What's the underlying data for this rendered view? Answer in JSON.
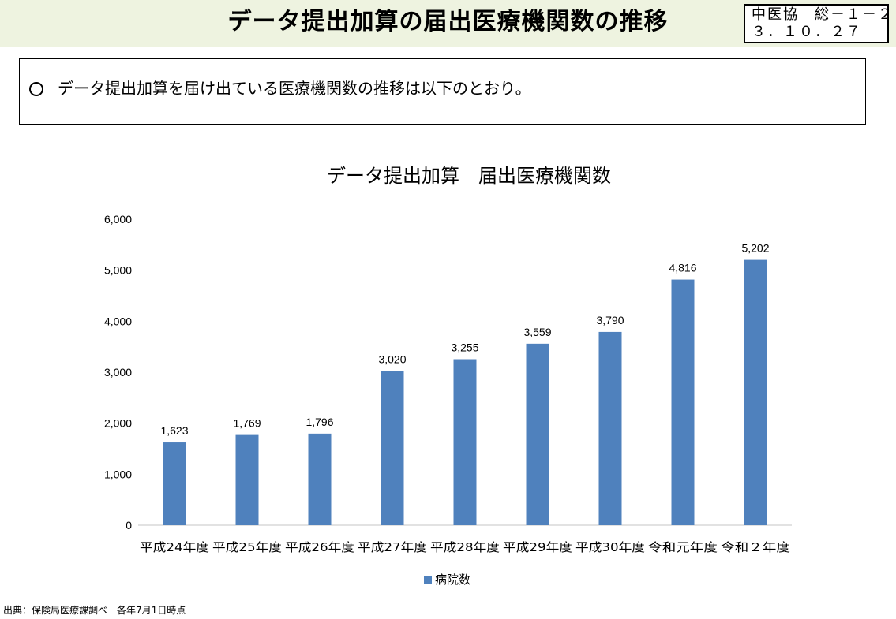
{
  "header": {
    "title": "データ提出加算の届出医療機関数の推移",
    "doc_id_line1": "中医協　総－１－２",
    "doc_id_line2": "３．１０．２７"
  },
  "summary": {
    "bullet": "○",
    "text": "データ提出加算を届け出ている医療機関数の推移は以下のとおり。"
  },
  "footer": {
    "source": "出典：保険局医療課調べ　各年7月1日時点"
  },
  "colors": {
    "bar": "#4f81bd",
    "axis": "#d9d9d9",
    "title_band": "#eef3e0"
  },
  "chart_data": {
    "type": "bar",
    "title": "データ提出加算　届出医療機関数",
    "categories": [
      "平成24年度",
      "平成25年度",
      "平成26年度",
      "平成27年度",
      "平成28年度",
      "平成29年度",
      "平成30年度",
      "令和元年度",
      "令和２年度"
    ],
    "series": [
      {
        "name": "病院数",
        "values": [
          1623,
          1769,
          1796,
          3020,
          3255,
          3559,
          3790,
          4816,
          5202
        ]
      }
    ],
    "data_labels": [
      "1,623",
      "1,769",
      "1,796",
      "3,020",
      "3,255",
      "3,559",
      "3,790",
      "4,816",
      "5,202"
    ],
    "y_ticks": [
      "0",
      "1,000",
      "2,000",
      "3,000",
      "4,000",
      "5,000",
      "6,000"
    ],
    "ylim": [
      0,
      6000
    ],
    "grid": false,
    "legend_position": "bottom"
  }
}
